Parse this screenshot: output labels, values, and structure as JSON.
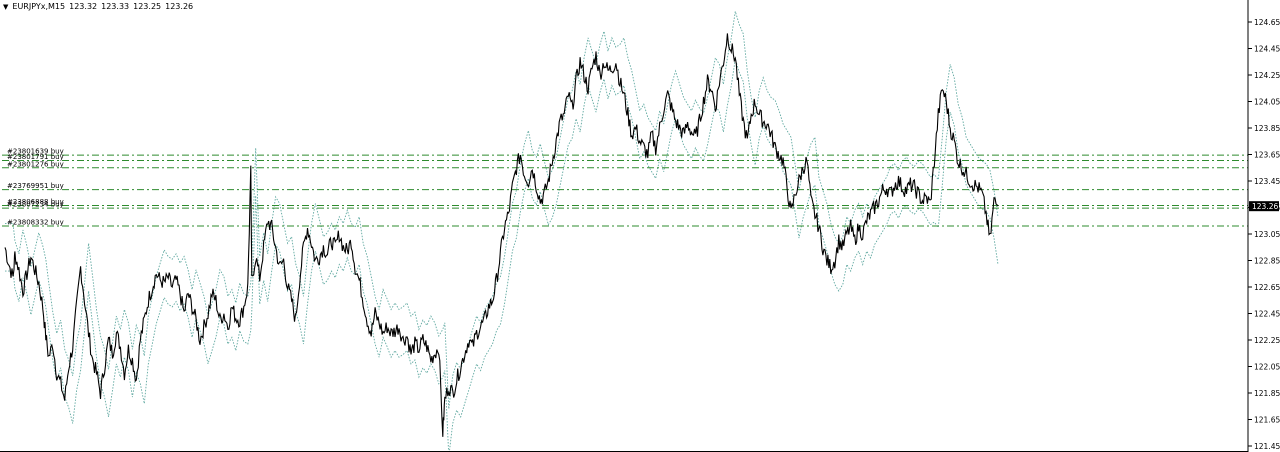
{
  "header": {
    "symbol": "EURJPYx,M15",
    "ohlc": [
      "123.32",
      "123.33",
      "123.25",
      "123.26"
    ],
    "dropdown_icon": "triangle-down-icon"
  },
  "colors": {
    "background": "#ffffff",
    "price_line": "#000000",
    "envelope": "#5fa8a0",
    "order_line": "#2e8b2e",
    "axis": "#000000",
    "price_badge_bg": "#000000",
    "price_badge_fg": "#ffffff"
  },
  "chart_data": {
    "type": "line",
    "symbol": "EURJPYx",
    "timeframe": "M15",
    "ylim": [
      121.45,
      124.75
    ],
    "y_ticks": [
      121.45,
      121.65,
      121.85,
      122.05,
      122.25,
      122.45,
      122.65,
      122.85,
      123.05,
      123.25,
      123.45,
      123.65,
      123.85,
      124.05,
      124.25,
      124.45,
      124.65
    ],
    "y_tick_labels": [
      "121.45",
      "121.65",
      "121.85",
      "122.05",
      "122.25",
      "122.45",
      "122.65",
      "122.85",
      "123.05",
      "123.25",
      "123.45",
      "123.65",
      "123.85",
      "124.05",
      "124.25",
      "124.45",
      "124.65"
    ],
    "current_price": 123.26,
    "current_price_label": "123.26",
    "price_series": [
      [
        0,
        122.95
      ],
      [
        4,
        122.82
      ],
      [
        8,
        122.72
      ],
      [
        10,
        122.9
      ],
      [
        14,
        122.78
      ],
      [
        18,
        122.62
      ],
      [
        22,
        122.75
      ],
      [
        26,
        122.88
      ],
      [
        30,
        122.78
      ],
      [
        34,
        122.68
      ],
      [
        38,
        122.5
      ],
      [
        41,
        122.28
      ],
      [
        44,
        122.12
      ],
      [
        48,
        122.22
      ],
      [
        52,
        122.0
      ],
      [
        56,
        121.92
      ],
      [
        60,
        121.8
      ],
      [
        64,
        122.05
      ],
      [
        68,
        122.2
      ],
      [
        72,
        122.5
      ],
      [
        76,
        122.8
      ],
      [
        80,
        122.55
      ],
      [
        84,
        122.3
      ],
      [
        88,
        122.1
      ],
      [
        92,
        122.0
      ],
      [
        96,
        121.85
      ],
      [
        100,
        122.05
      ],
      [
        104,
        122.25
      ],
      [
        108,
        122.15
      ],
      [
        112,
        122.3
      ],
      [
        116,
        122.2
      ],
      [
        120,
        122.0
      ],
      [
        124,
        122.18
      ],
      [
        128,
        122.1
      ],
      [
        132,
        121.95
      ],
      [
        136,
        122.25
      ],
      [
        140,
        122.4
      ],
      [
        144,
        122.55
      ],
      [
        148,
        122.65
      ],
      [
        152,
        122.75
      ],
      [
        156,
        122.7
      ],
      [
        160,
        122.68
      ],
      [
        164,
        122.72
      ],
      [
        168,
        122.65
      ],
      [
        172,
        122.7
      ],
      [
        176,
        122.6
      ],
      [
        180,
        122.45
      ],
      [
        184,
        122.6
      ],
      [
        188,
        122.5
      ],
      [
        192,
        122.4
      ],
      [
        196,
        122.25
      ],
      [
        200,
        122.35
      ],
      [
        204,
        122.45
      ],
      [
        208,
        122.6
      ],
      [
        212,
        122.55
      ],
      [
        216,
        122.4
      ],
      [
        220,
        122.45
      ],
      [
        224,
        122.35
      ],
      [
        228,
        122.5
      ],
      [
        232,
        122.42
      ],
      [
        236,
        122.4
      ],
      [
        240,
        122.5
      ],
      [
        244,
        122.65
      ],
      [
        247,
        123.52
      ],
      [
        248,
        122.7
      ],
      [
        252,
        122.88
      ],
      [
        256,
        122.72
      ],
      [
        260,
        122.95
      ],
      [
        264,
        123.15
      ],
      [
        268,
        123.1
      ],
      [
        272,
        122.95
      ],
      [
        276,
        122.8
      ],
      [
        280,
        122.85
      ],
      [
        284,
        122.65
      ],
      [
        288,
        122.55
      ],
      [
        292,
        122.4
      ],
      [
        296,
        122.7
      ],
      [
        300,
        122.95
      ],
      [
        304,
        123.1
      ],
      [
        308,
        122.98
      ],
      [
        312,
        122.85
      ],
      [
        316,
        122.88
      ],
      [
        320,
        122.95
      ],
      [
        324,
        122.9
      ],
      [
        328,
        123.0
      ],
      [
        332,
        122.95
      ],
      [
        336,
        123.05
      ],
      [
        340,
        122.95
      ],
      [
        344,
        122.92
      ],
      [
        348,
        123.0
      ],
      [
        352,
        122.8
      ],
      [
        356,
        122.7
      ],
      [
        360,
        122.55
      ],
      [
        364,
        122.4
      ],
      [
        368,
        122.3
      ],
      [
        372,
        122.45
      ],
      [
        376,
        122.38
      ],
      [
        380,
        122.3
      ],
      [
        384,
        122.35
      ],
      [
        388,
        122.3
      ],
      [
        392,
        122.32
      ],
      [
        396,
        122.35
      ],
      [
        400,
        122.25
      ],
      [
        404,
        122.28
      ],
      [
        408,
        122.15
      ],
      [
        412,
        122.22
      ],
      [
        416,
        122.18
      ],
      [
        420,
        122.25
      ],
      [
        424,
        122.2
      ],
      [
        428,
        122.1
      ],
      [
        432,
        122.15
      ],
      [
        436,
        122.2
      ],
      [
        440,
        121.55
      ],
      [
        442,
        121.8
      ],
      [
        446,
        121.9
      ],
      [
        450,
        121.85
      ],
      [
        454,
        121.95
      ],
      [
        458,
        122.05
      ],
      [
        462,
        122.15
      ],
      [
        466,
        122.25
      ],
      [
        470,
        122.2
      ],
      [
        474,
        122.3
      ],
      [
        478,
        122.35
      ],
      [
        482,
        122.4
      ],
      [
        486,
        122.5
      ],
      [
        490,
        122.55
      ],
      [
        494,
        122.7
      ],
      [
        498,
        122.9
      ],
      [
        502,
        123.1
      ],
      [
        506,
        123.2
      ],
      [
        510,
        123.4
      ],
      [
        514,
        123.55
      ],
      [
        518,
        123.65
      ],
      [
        522,
        123.5
      ],
      [
        526,
        123.45
      ],
      [
        530,
        123.55
      ],
      [
        534,
        123.42
      ],
      [
        538,
        123.3
      ],
      [
        542,
        123.35
      ],
      [
        546,
        123.45
      ],
      [
        550,
        123.6
      ],
      [
        554,
        123.75
      ],
      [
        558,
        123.9
      ],
      [
        562,
        123.95
      ],
      [
        566,
        124.1
      ],
      [
        570,
        124.0
      ],
      [
        574,
        124.2
      ],
      [
        578,
        124.35
      ],
      [
        582,
        124.25
      ],
      [
        586,
        124.15
      ],
      [
        590,
        124.3
      ],
      [
        594,
        124.4
      ],
      [
        598,
        124.25
      ],
      [
        602,
        124.35
      ],
      [
        606,
        124.28
      ],
      [
        610,
        124.3
      ],
      [
        614,
        124.35
      ],
      [
        618,
        124.2
      ],
      [
        622,
        124.1
      ],
      [
        626,
        123.95
      ],
      [
        630,
        123.8
      ],
      [
        634,
        123.85
      ],
      [
        638,
        123.75
      ],
      [
        642,
        123.7
      ],
      [
        646,
        123.65
      ],
      [
        650,
        123.8
      ],
      [
        654,
        123.7
      ],
      [
        658,
        123.85
      ],
      [
        662,
        124.0
      ],
      [
        666,
        124.1
      ],
      [
        670,
        124.0
      ],
      [
        674,
        123.9
      ],
      [
        678,
        123.85
      ],
      [
        682,
        123.8
      ],
      [
        686,
        123.88
      ],
      [
        690,
        123.82
      ],
      [
        694,
        123.78
      ],
      [
        698,
        123.9
      ],
      [
        702,
        124.05
      ],
      [
        706,
        124.2
      ],
      [
        710,
        124.15
      ],
      [
        714,
        124.0
      ],
      [
        718,
        124.2
      ],
      [
        722,
        124.35
      ],
      [
        726,
        124.55
      ],
      [
        730,
        124.45
      ],
      [
        734,
        124.38
      ],
      [
        738,
        124.1
      ],
      [
        742,
        123.9
      ],
      [
        746,
        123.75
      ],
      [
        750,
        123.95
      ],
      [
        754,
        124.05
      ],
      [
        758,
        123.95
      ],
      [
        762,
        123.9
      ],
      [
        766,
        123.88
      ],
      [
        770,
        123.8
      ],
      [
        774,
        123.7
      ],
      [
        778,
        123.65
      ],
      [
        782,
        123.6
      ],
      [
        786,
        123.4
      ],
      [
        790,
        123.2
      ],
      [
        794,
        123.35
      ],
      [
        798,
        123.45
      ],
      [
        802,
        123.55
      ],
      [
        806,
        123.6
      ],
      [
        810,
        123.3
      ],
      [
        814,
        123.2
      ],
      [
        818,
        123.1
      ],
      [
        822,
        122.95
      ],
      [
        826,
        122.85
      ],
      [
        830,
        122.8
      ],
      [
        834,
        122.85
      ],
      [
        838,
        123.0
      ],
      [
        842,
        122.95
      ],
      [
        846,
        123.05
      ],
      [
        850,
        123.1
      ],
      [
        854,
        123.0
      ],
      [
        858,
        123.1
      ],
      [
        862,
        123.05
      ],
      [
        866,
        123.15
      ],
      [
        870,
        123.2
      ],
      [
        874,
        123.25
      ],
      [
        878,
        123.3
      ],
      [
        882,
        123.38
      ],
      [
        886,
        123.4
      ],
      [
        890,
        123.35
      ],
      [
        894,
        123.42
      ],
      [
        898,
        123.45
      ],
      [
        902,
        123.4
      ],
      [
        906,
        123.38
      ],
      [
        910,
        123.42
      ],
      [
        914,
        123.4
      ],
      [
        918,
        123.35
      ],
      [
        922,
        123.3
      ],
      [
        926,
        123.32
      ],
      [
        930,
        123.28
      ],
      [
        934,
        123.6
      ],
      [
        938,
        123.95
      ],
      [
        942,
        124.15
      ],
      [
        946,
        124.05
      ],
      [
        950,
        123.85
      ],
      [
        954,
        123.75
      ],
      [
        958,
        123.6
      ],
      [
        962,
        123.55
      ],
      [
        966,
        123.5
      ],
      [
        970,
        123.45
      ],
      [
        974,
        123.42
      ],
      [
        978,
        123.4
      ],
      [
        982,
        123.35
      ],
      [
        986,
        123.2
      ],
      [
        990,
        123.0
      ],
      [
        994,
        123.3
      ],
      [
        998,
        123.26
      ]
    ],
    "orders": [
      {
        "label": "#23801639 buy",
        "price": 123.645
      },
      {
        "label": "#23801791 buy",
        "price": 123.605
      },
      {
        "label": "#23801276 buy",
        "price": 123.55
      },
      {
        "label": "#23769951 buy",
        "price": 123.385
      },
      {
        "label": "#23806888 buy",
        "price": 123.265
      },
      {
        "label": "#23807234 buy",
        "price": 123.245
      },
      {
        "label": "#23808332 buy",
        "price": 123.11
      }
    ],
    "grid": false
  }
}
